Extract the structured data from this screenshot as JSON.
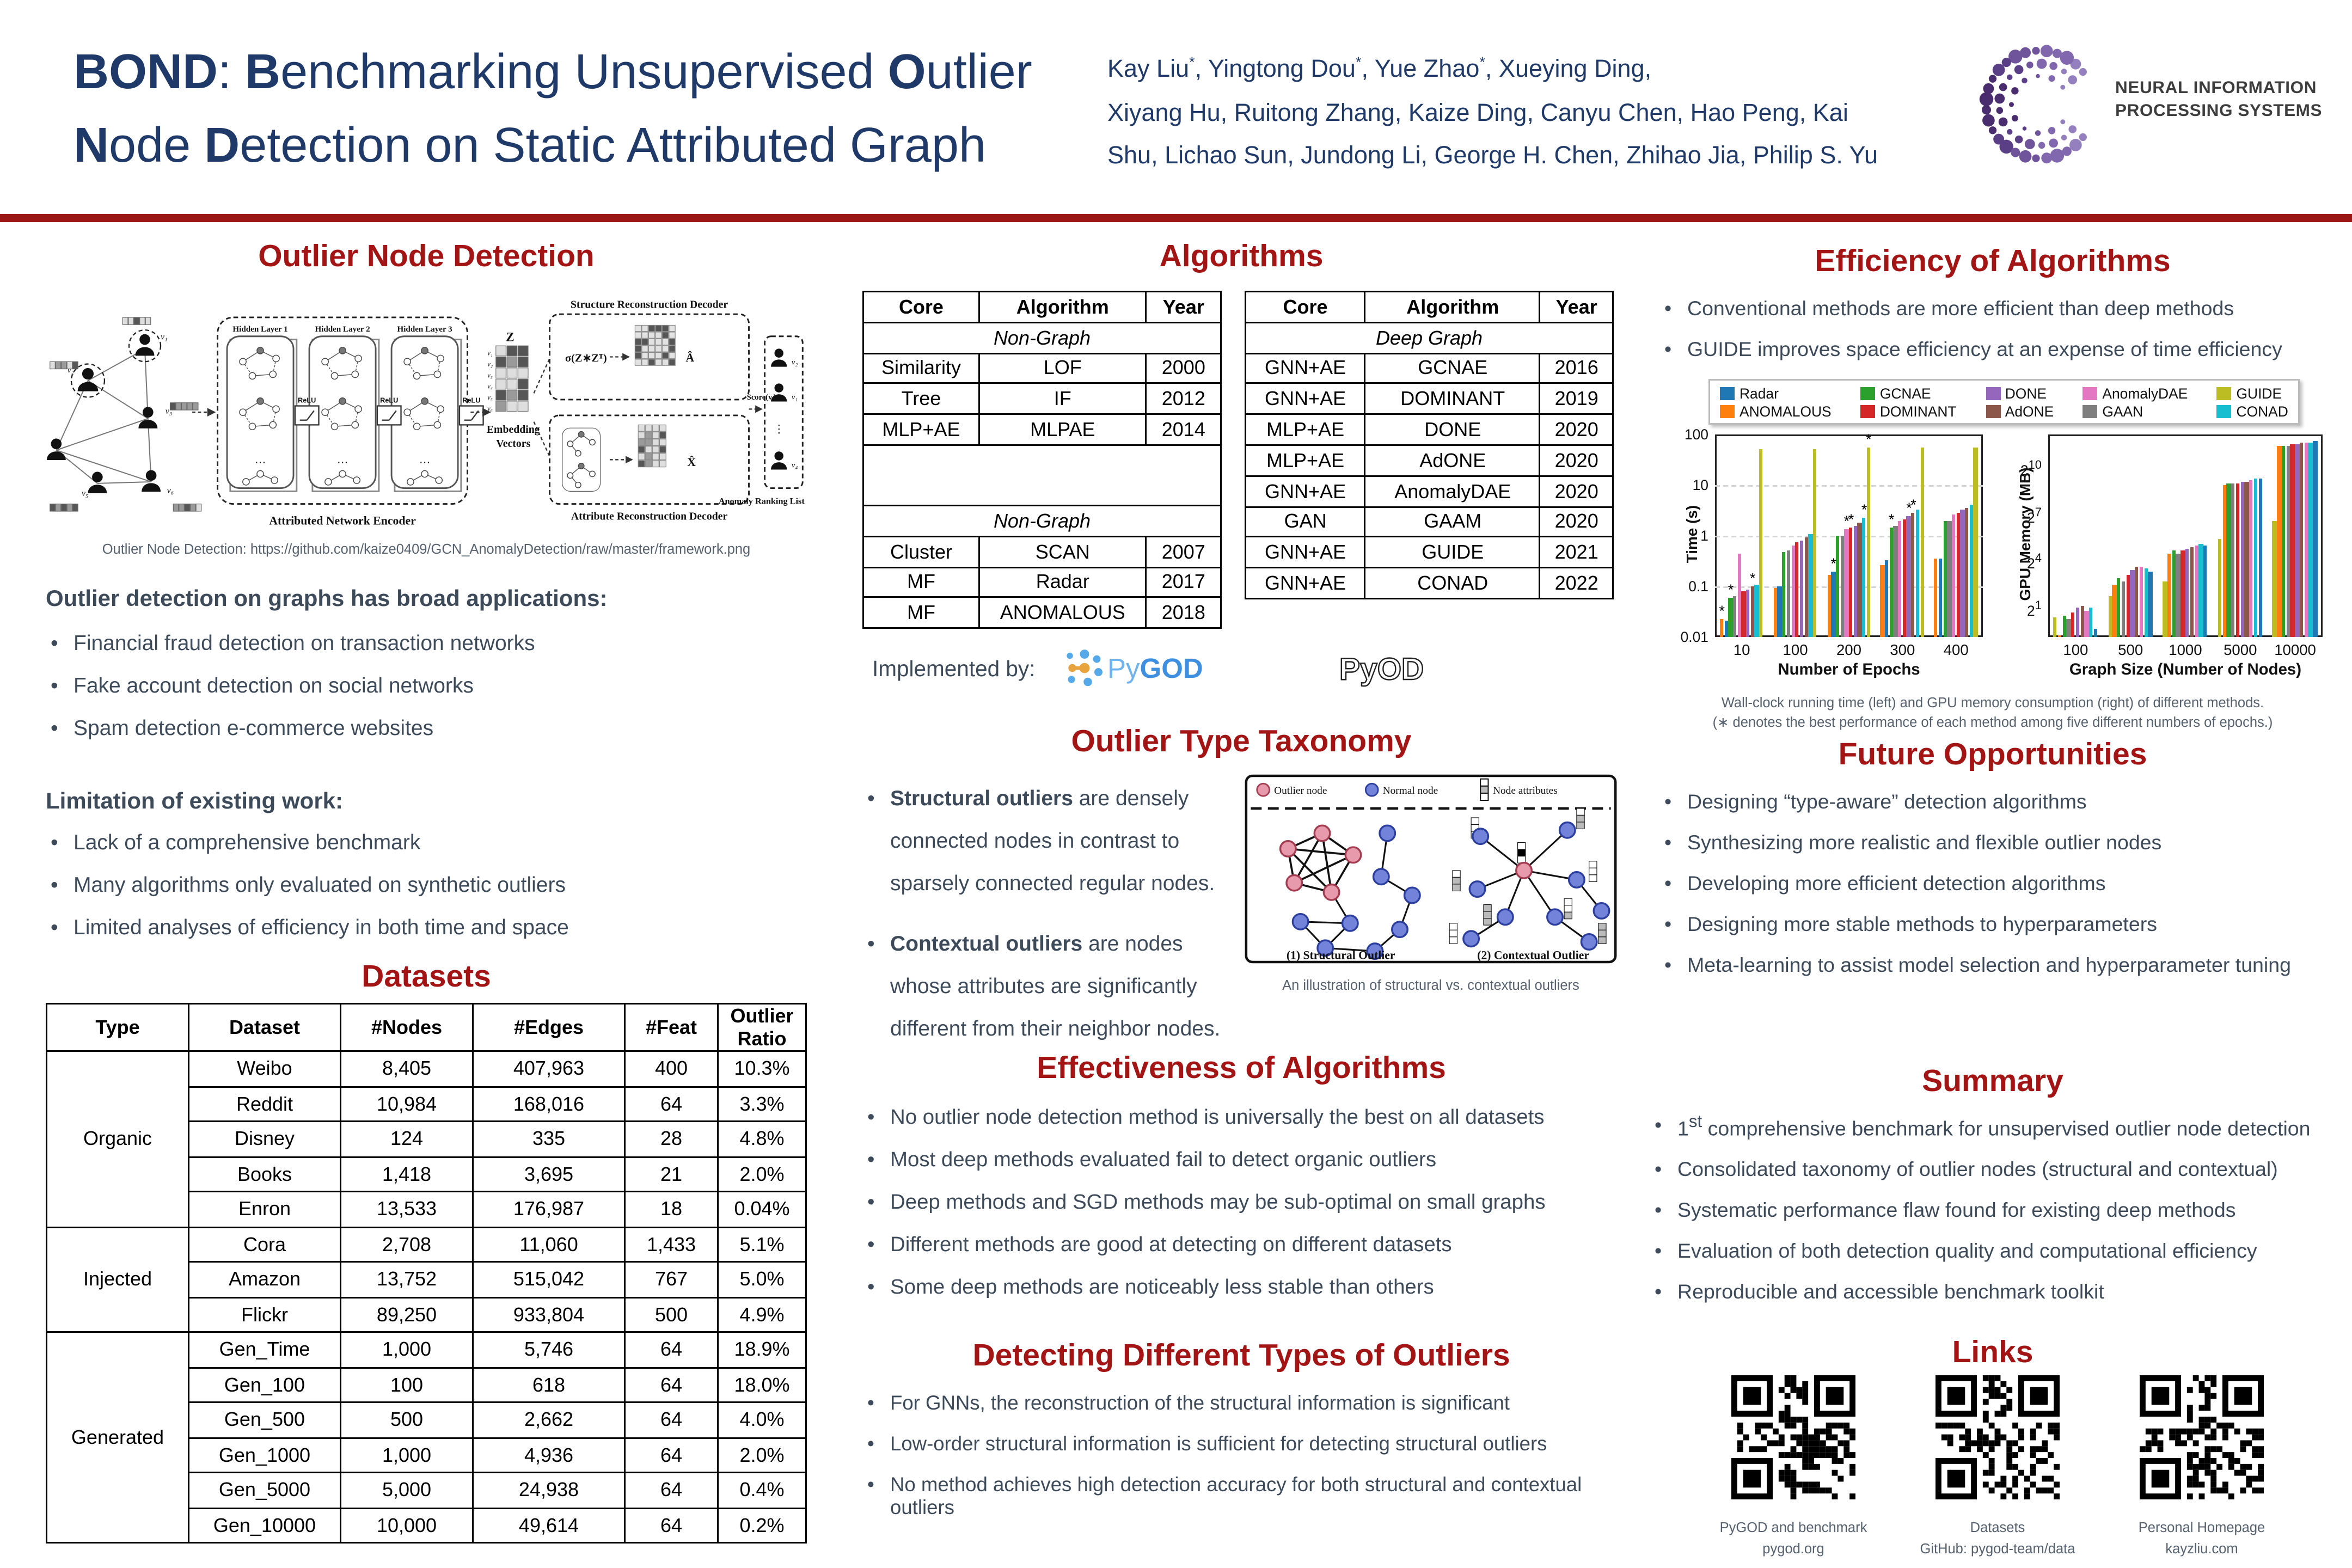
{
  "colors": {
    "heading_red": "#A31414",
    "title_navy": "#1F3A68",
    "body_slate": "#3D4A5A",
    "rule_red": "#9E1717",
    "outlier_node": "#E79AAB",
    "normal_node": "#7283D9"
  },
  "header": {
    "title_parts": [
      {
        "t": "BOND",
        "b": 1
      },
      {
        "t": ": ",
        "b": 0
      },
      {
        "t": "B",
        "b": 1
      },
      {
        "t": "enchmarking Unsupervised ",
        "b": 0
      },
      {
        "t": "O",
        "b": 1
      },
      {
        "t": "utlier ",
        "b": 0
      },
      {
        "t": "N",
        "b": 1
      },
      {
        "t": "ode ",
        "b": 0
      },
      {
        "t": "D",
        "b": 1
      },
      {
        "t": "etection on Static Attributed Graph",
        "b": 0
      }
    ],
    "authors_lines": [
      "Kay Liu*, Yingtong Dou*, Yue Zhao*, Xueying Ding,",
      "Xiyang Hu, Ruitong Zhang, Kaize Ding, Canyu Chen, Hao Peng, Kai",
      "Shu, Lichao Sun, Jundong Li, George H. Chen, Zhihao Jia, Philip S. Yu"
    ],
    "neurips_line1": "NEURAL INFORMATION",
    "neurips_line2": "PROCESSING SYSTEMS"
  },
  "col1": {
    "heading": "Outlier Node Detection",
    "framework": {
      "hidden_layers": [
        "Hidden Layer 1",
        "Hidden Layer 2",
        "Hidden Layer 3"
      ],
      "relu": "ReLU",
      "encoder": "Attributed Network Encoder",
      "z": "Z",
      "embedding_1": "Embedding",
      "embedding_2": "Vectors",
      "struct_decoder": "Structure Reconstruction Decoder",
      "attr_decoder": "Attribute Reconstruction Decoder",
      "sigma": "σ(Z∗Zᵀ)",
      "a_hat": "Â",
      "x_hat": "X̂",
      "score": "Score(vᵢ)",
      "ranking": "Anomaly Ranking List"
    },
    "figure_caption": "Outlier Node Detection: https://github.com/kaize0409/GCN_AnomalyDetection/raw/master/framework.png",
    "applications_title": "Outlier detection on graphs has broad applications:",
    "applications": [
      "Financial fraud detection on transaction networks",
      "Fake account detection on social networks",
      "Spam detection e-commerce websites"
    ],
    "limitations_title": "Limitation of existing work:",
    "limitations": [
      "Lack of a comprehensive benchmark",
      "Many algorithms only evaluated on synthetic outliers",
      "Limited analyses of efficiency in both time and space"
    ],
    "datasets_heading": "Datasets",
    "datasets_table": {
      "columns": [
        "Type",
        "Dataset",
        "#Nodes",
        "#Edges",
        "#Feat",
        "Outlier Ratio"
      ],
      "groups": [
        {
          "type": "Organic",
          "rows": [
            [
              "Weibo",
              "8,405",
              "407,963",
              "400",
              "10.3%"
            ],
            [
              "Reddit",
              "10,984",
              "168,016",
              "64",
              "3.3%"
            ],
            [
              "Disney",
              "124",
              "335",
              "28",
              "4.8%"
            ],
            [
              "Books",
              "1,418",
              "3,695",
              "21",
              "2.0%"
            ],
            [
              "Enron",
              "13,533",
              "176,987",
              "18",
              "0.04%"
            ]
          ]
        },
        {
          "type": "Injected",
          "rows": [
            [
              "Cora",
              "2,708",
              "11,060",
              "1,433",
              "5.1%"
            ],
            [
              "Amazon",
              "13,752",
              "515,042",
              "767",
              "5.0%"
            ],
            [
              "Flickr",
              "89,250",
              "933,804",
              "500",
              "4.9%"
            ]
          ]
        },
        {
          "type": "Generated",
          "rows": [
            [
              "Gen_Time",
              "1,000",
              "5,746",
              "64",
              "18.9%"
            ],
            [
              "Gen_100",
              "100",
              "618",
              "64",
              "18.0%"
            ],
            [
              "Gen_500",
              "500",
              "2,662",
              "64",
              "4.0%"
            ],
            [
              "Gen_1000",
              "1,000",
              "4,936",
              "64",
              "2.0%"
            ],
            [
              "Gen_5000",
              "5,000",
              "24,938",
              "64",
              "0.4%"
            ],
            [
              "Gen_10000",
              "10,000",
              "49,614",
              "64",
              "0.2%"
            ]
          ]
        }
      ]
    }
  },
  "col2": {
    "heading": "Algorithms",
    "alg_left": {
      "columns": [
        "Core",
        "Algorithm",
        "Year"
      ],
      "spacer": true,
      "sections": [
        {
          "label": "Non-Graph",
          "rows": [
            [
              "Similarity",
              "LOF",
              "2000"
            ],
            [
              "Tree",
              "IF",
              "2012"
            ],
            [
              "MLP+AE",
              "MLPAE",
              "2014"
            ]
          ]
        },
        {
          "label": "Non-Graph",
          "rows": [
            [
              "Cluster",
              "SCAN",
              "2007"
            ],
            [
              "MF",
              "Radar",
              "2017"
            ],
            [
              "MF",
              "ANOMALOUS",
              "2018"
            ]
          ]
        }
      ]
    },
    "alg_right": {
      "columns": [
        "Core",
        "Algorithm",
        "Year"
      ],
      "spacer": false,
      "sections": [
        {
          "label": "Deep Graph",
          "rows": [
            [
              "GNN+AE",
              "GCNAE",
              "2016"
            ],
            [
              "GNN+AE",
              "DOMINANT",
              "2019"
            ],
            [
              "MLP+AE",
              "DONE",
              "2020"
            ],
            [
              "MLP+AE",
              "AdONE",
              "2020"
            ],
            [
              "GNN+AE",
              "AnomalyDAE",
              "2020"
            ],
            [
              "GAN",
              "GAAM",
              "2020"
            ],
            [
              "GNN+AE",
              "GUIDE",
              "2021"
            ],
            [
              "GNN+AE",
              "CONAD",
              "2022"
            ]
          ]
        }
      ]
    },
    "implemented_by": "Implemented by:",
    "pygod_py": "Py",
    "pygod_god": "GOD",
    "pyod_label": "PyOD",
    "taxonomy_heading": "Outlier Type Taxonomy",
    "taxonomy_bullets": [
      {
        "bold": "Structural outliers",
        "rest": " are densely connected nodes in contrast to sparsely connected regular nodes."
      },
      {
        "bold": "Contextual outliers",
        "rest": " are nodes whose attributes are significantly different from their neighbor nodes."
      }
    ],
    "taxonomy_figure": {
      "legend_outlier": "Outlier node",
      "legend_normal": "Normal node",
      "legend_attr": "Node attributes",
      "caption_left": "(1) Structural Outlier",
      "caption_right": "(2) Contextual Outlier",
      "fig_caption": "An illustration of structural vs. contextual outliers"
    },
    "effectiveness_heading": "Effectiveness of Algorithms",
    "effectiveness": [
      "No outlier node detection method is universally the best on all datasets",
      "Most deep methods evaluated fail to detect organic outliers",
      "Deep methods and SGD methods may be sub-optimal on small graphs",
      "Different methods are good at detecting on different datasets",
      "Some deep methods are noticeably less stable than others"
    ],
    "detecting_heading": "Detecting Different Types of Outliers",
    "detecting": [
      "For GNNs, the reconstruction of the structural information is significant",
      "Low-order structural information is sufficient for detecting structural outliers",
      "No method achieves high detection accuracy for both structural and contextual outliers"
    ]
  },
  "col3": {
    "efficiency_heading": "Efficiency of Algorithms",
    "efficiency": [
      "Conventional methods are more efficient than deep methods",
      "GUIDE improves space efficiency at an expense of time efficiency"
    ],
    "charts_caption_1": "Wall-clock running time (left) and GPU memory consumption (right) of different methods.",
    "charts_caption_2": "(∗ denotes the best performance of each method among five different numbers of epochs.)",
    "future_heading": "Future Opportunities",
    "future": [
      "Designing “type-aware” detection algorithms",
      "Synthesizing more realistic and flexible outlier nodes",
      "Developing more efficient detection algorithms",
      "Designing more stable methods to hyperparameters",
      "Meta-learning to assist model selection and hyperparameter tuning"
    ],
    "summary_heading": "Summary",
    "summary": [
      "1st comprehensive benchmark for unsupervised outlier node detection",
      "Consolidated taxonomy of outlier nodes (structural and contextual)",
      "Systematic performance flaw found for existing deep methods",
      "Evaluation of both detection quality and computational efficiency",
      "Reproducible and accessible benchmark toolkit"
    ],
    "links_heading": "Links",
    "links": [
      {
        "line1": "PyGOD and benchmark",
        "line2": "pygod.org"
      },
      {
        "line1": "Datasets",
        "line2": "GitHub: pygod-team/data"
      },
      {
        "line1": "Personal Homepage",
        "line2": "kayzliu.com"
      }
    ]
  },
  "chart_data": [
    {
      "type": "bar",
      "title": "",
      "xlabel": "Number of Epochs",
      "ylabel": "Time (s)",
      "yscale": "log10",
      "ylim": [
        0.01,
        100
      ],
      "grid": true,
      "legend_position": "top",
      "yticks": [
        {
          "v": 100,
          "label": "100"
        },
        {
          "v": 10,
          "label": "10"
        },
        {
          "v": 1,
          "label": "1"
        },
        {
          "v": 0.1,
          "label": "0.1"
        },
        {
          "v": 0.01,
          "label": "0.01"
        }
      ],
      "categories": [
        "10",
        "100",
        "200",
        "300",
        "400"
      ],
      "series": [
        {
          "name": "Radar",
          "color": "#1f77b4",
          "values": [
            0.021,
            0.1,
            0.19,
            0.34,
            0.36
          ]
        },
        {
          "name": "ANOMALOUS",
          "color": "#ff7f0e",
          "values": [
            0.022,
            0.09,
            0.17,
            0.27,
            0.36
          ]
        },
        {
          "name": "GCNAE",
          "color": "#2ca02c",
          "values": [
            0.058,
            0.48,
            0.98,
            1.45,
            2.0
          ]
        },
        {
          "name": "DOMINANT",
          "color": "#d62728",
          "values": [
            0.08,
            0.72,
            1.45,
            2.1,
            2.9
          ]
        },
        {
          "name": "DONE",
          "color": "#9467bd",
          "values": [
            0.085,
            0.78,
            1.55,
            2.4,
            3.2
          ]
        },
        {
          "name": "AdONE",
          "color": "#8c564b",
          "values": [
            0.1,
            0.95,
            1.85,
            2.8,
            3.6
          ]
        },
        {
          "name": "AnomalyDAE",
          "color": "#e377c2",
          "values": [
            0.45,
            0.65,
            1.3,
            1.9,
            2.6
          ]
        },
        {
          "name": "GAAN",
          "color": "#7f7f7f",
          "values": [
            0.065,
            0.5,
            1.0,
            1.6,
            2.0
          ]
        },
        {
          "name": "GUIDE",
          "color": "#bcbd22",
          "values": [
            50,
            52,
            55,
            55,
            55
          ]
        },
        {
          "name": "CONAD",
          "color": "#17becf",
          "values": [
            0.11,
            1.05,
            2.2,
            3.2,
            4.2
          ]
        }
      ],
      "bar_order": [
        "ANOMALOUS",
        "Radar",
        "GCNAE",
        "GAAN",
        "AnomalyDAE",
        "DOMINANT",
        "DONE",
        "AdONE",
        "CONAD",
        "GUIDE"
      ],
      "stars": [
        [
          0,
          "ANOMALOUS"
        ],
        [
          0,
          "GCNAE"
        ],
        [
          0,
          "AdONE"
        ],
        [
          2,
          "Radar"
        ],
        [
          2,
          "DOMINANT"
        ],
        [
          2,
          "AnomalyDAE"
        ],
        [
          2,
          "CONAD"
        ],
        [
          2,
          "GUIDE"
        ],
        [
          3,
          "GCNAE"
        ],
        [
          3,
          "DONE"
        ],
        [
          3,
          "AdONE"
        ]
      ]
    },
    {
      "type": "bar",
      "title": "",
      "xlabel": "Graph Size (Number of Nodes)",
      "ylabel": "GPU Memory (MB)",
      "yscale": "log2",
      "ylim": [
        0.5,
        4096
      ],
      "grid": false,
      "yticks": [
        {
          "v": 1024,
          "pow": 10
        },
        {
          "v": 128,
          "pow": 7
        },
        {
          "v": 16,
          "pow": 4
        },
        {
          "v": 2,
          "pow": 1
        }
      ],
      "categories": [
        "100",
        "500",
        "1000",
        "5000",
        "10000"
      ],
      "series": [
        {
          "name": "Radar",
          "color": "#1f77b4",
          "values": [
            0.7,
            9.0,
            29,
            580,
            3100
          ]
        },
        {
          "name": "ANOMALOUS",
          "color": "#ff7f0e",
          "values": [
            0.55,
            5.0,
            20,
            420,
            2400
          ]
        },
        {
          "name": "GCNAE",
          "color": "#2ca02c",
          "values": [
            1.25,
            7.0,
            23,
            460,
            2550
          ]
        },
        {
          "name": "DOMINANT",
          "color": "#d62728",
          "values": [
            1.5,
            8.0,
            24,
            470,
            2600
          ]
        },
        {
          "name": "DONE",
          "color": "#9467bd",
          "values": [
            1.9,
            10.0,
            26,
            490,
            2700
          ]
        },
        {
          "name": "AdONE",
          "color": "#8c564b",
          "values": [
            2.0,
            11.0,
            28,
            510,
            2750
          ]
        },
        {
          "name": "AnomalyDAE",
          "color": "#e377c2",
          "values": [
            1.6,
            11.5,
            30,
            540,
            2850
          ]
        },
        {
          "name": "GAAN",
          "color": "#7f7f7f",
          "values": [
            1.15,
            6.0,
            21,
            450,
            2500
          ]
        },
        {
          "name": "GUIDE",
          "color": "#bcbd22",
          "values": [
            1.2,
            3.0,
            6.0,
            38,
            90
          ]
        },
        {
          "name": "CONAD",
          "color": "#17becf",
          "values": [
            1.8,
            10.5,
            31,
            560,
            2950
          ]
        }
      ],
      "bar_order": [
        "GUIDE",
        "ANOMALOUS",
        "GCNAE",
        "GAAN",
        "DOMINANT",
        "DONE",
        "AdONE",
        "AnomalyDAE",
        "CONAD",
        "Radar"
      ],
      "stars": []
    }
  ]
}
